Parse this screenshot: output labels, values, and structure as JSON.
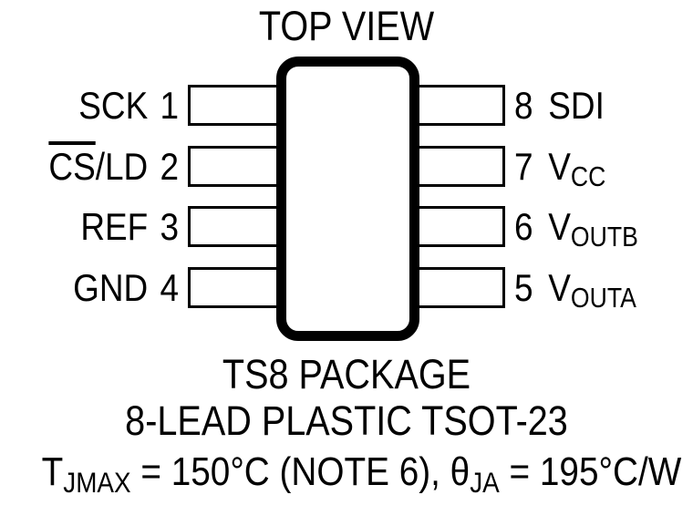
{
  "title": "TOP VIEW",
  "package": {
    "name": "TS8 PACKAGE",
    "description": "8-LEAD PLASTIC TSOT-23"
  },
  "thermal_note": {
    "t_symbol": "T",
    "t_subscript": "JMAX",
    "t_value": " = 150°C (NOTE 6), ",
    "theta_symbol": "θ",
    "theta_subscript": "JA",
    "theta_value": " = 195°C/W"
  },
  "pins": {
    "left": [
      {
        "number": "1",
        "name": "SCK"
      },
      {
        "number": "2",
        "name_overline": "CS",
        "name_rest": "/LD"
      },
      {
        "number": "3",
        "name": "REF"
      },
      {
        "number": "4",
        "name": "GND"
      }
    ],
    "right": [
      {
        "number": "8",
        "name": "SDI"
      },
      {
        "number": "7",
        "name_base": "V",
        "name_subscript": "CC"
      },
      {
        "number": "6",
        "name_base": "V",
        "name_subscript": "OUTB"
      },
      {
        "number": "5",
        "name_base": "V",
        "name_subscript": "OUTA"
      }
    ]
  },
  "colors": {
    "ink": "#000000",
    "background": "#ffffff"
  }
}
